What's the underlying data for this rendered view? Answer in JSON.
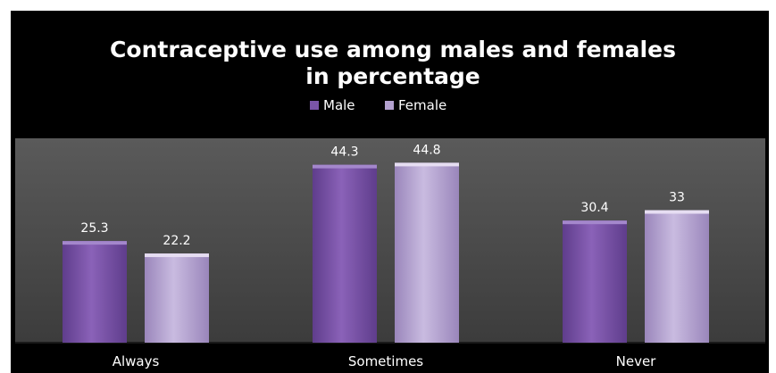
{
  "chart_data": {
    "type": "bar",
    "title_lines": [
      "Contraceptive use among males and females",
      "in percentage"
    ],
    "categories": [
      "Always",
      "Sometimes",
      "Never"
    ],
    "series": [
      {
        "name": "Male",
        "values": [
          25.3,
          44.3,
          30.4
        ],
        "color": "#7a55a8"
      },
      {
        "name": "Female",
        "values": [
          22.2,
          44.8,
          33
        ],
        "color": "#b3a1cf"
      }
    ],
    "ylim": [
      0,
      50
    ],
    "legend_position": "top",
    "grid": false,
    "plot_background": "#4a4a4a",
    "background": "#000000"
  }
}
